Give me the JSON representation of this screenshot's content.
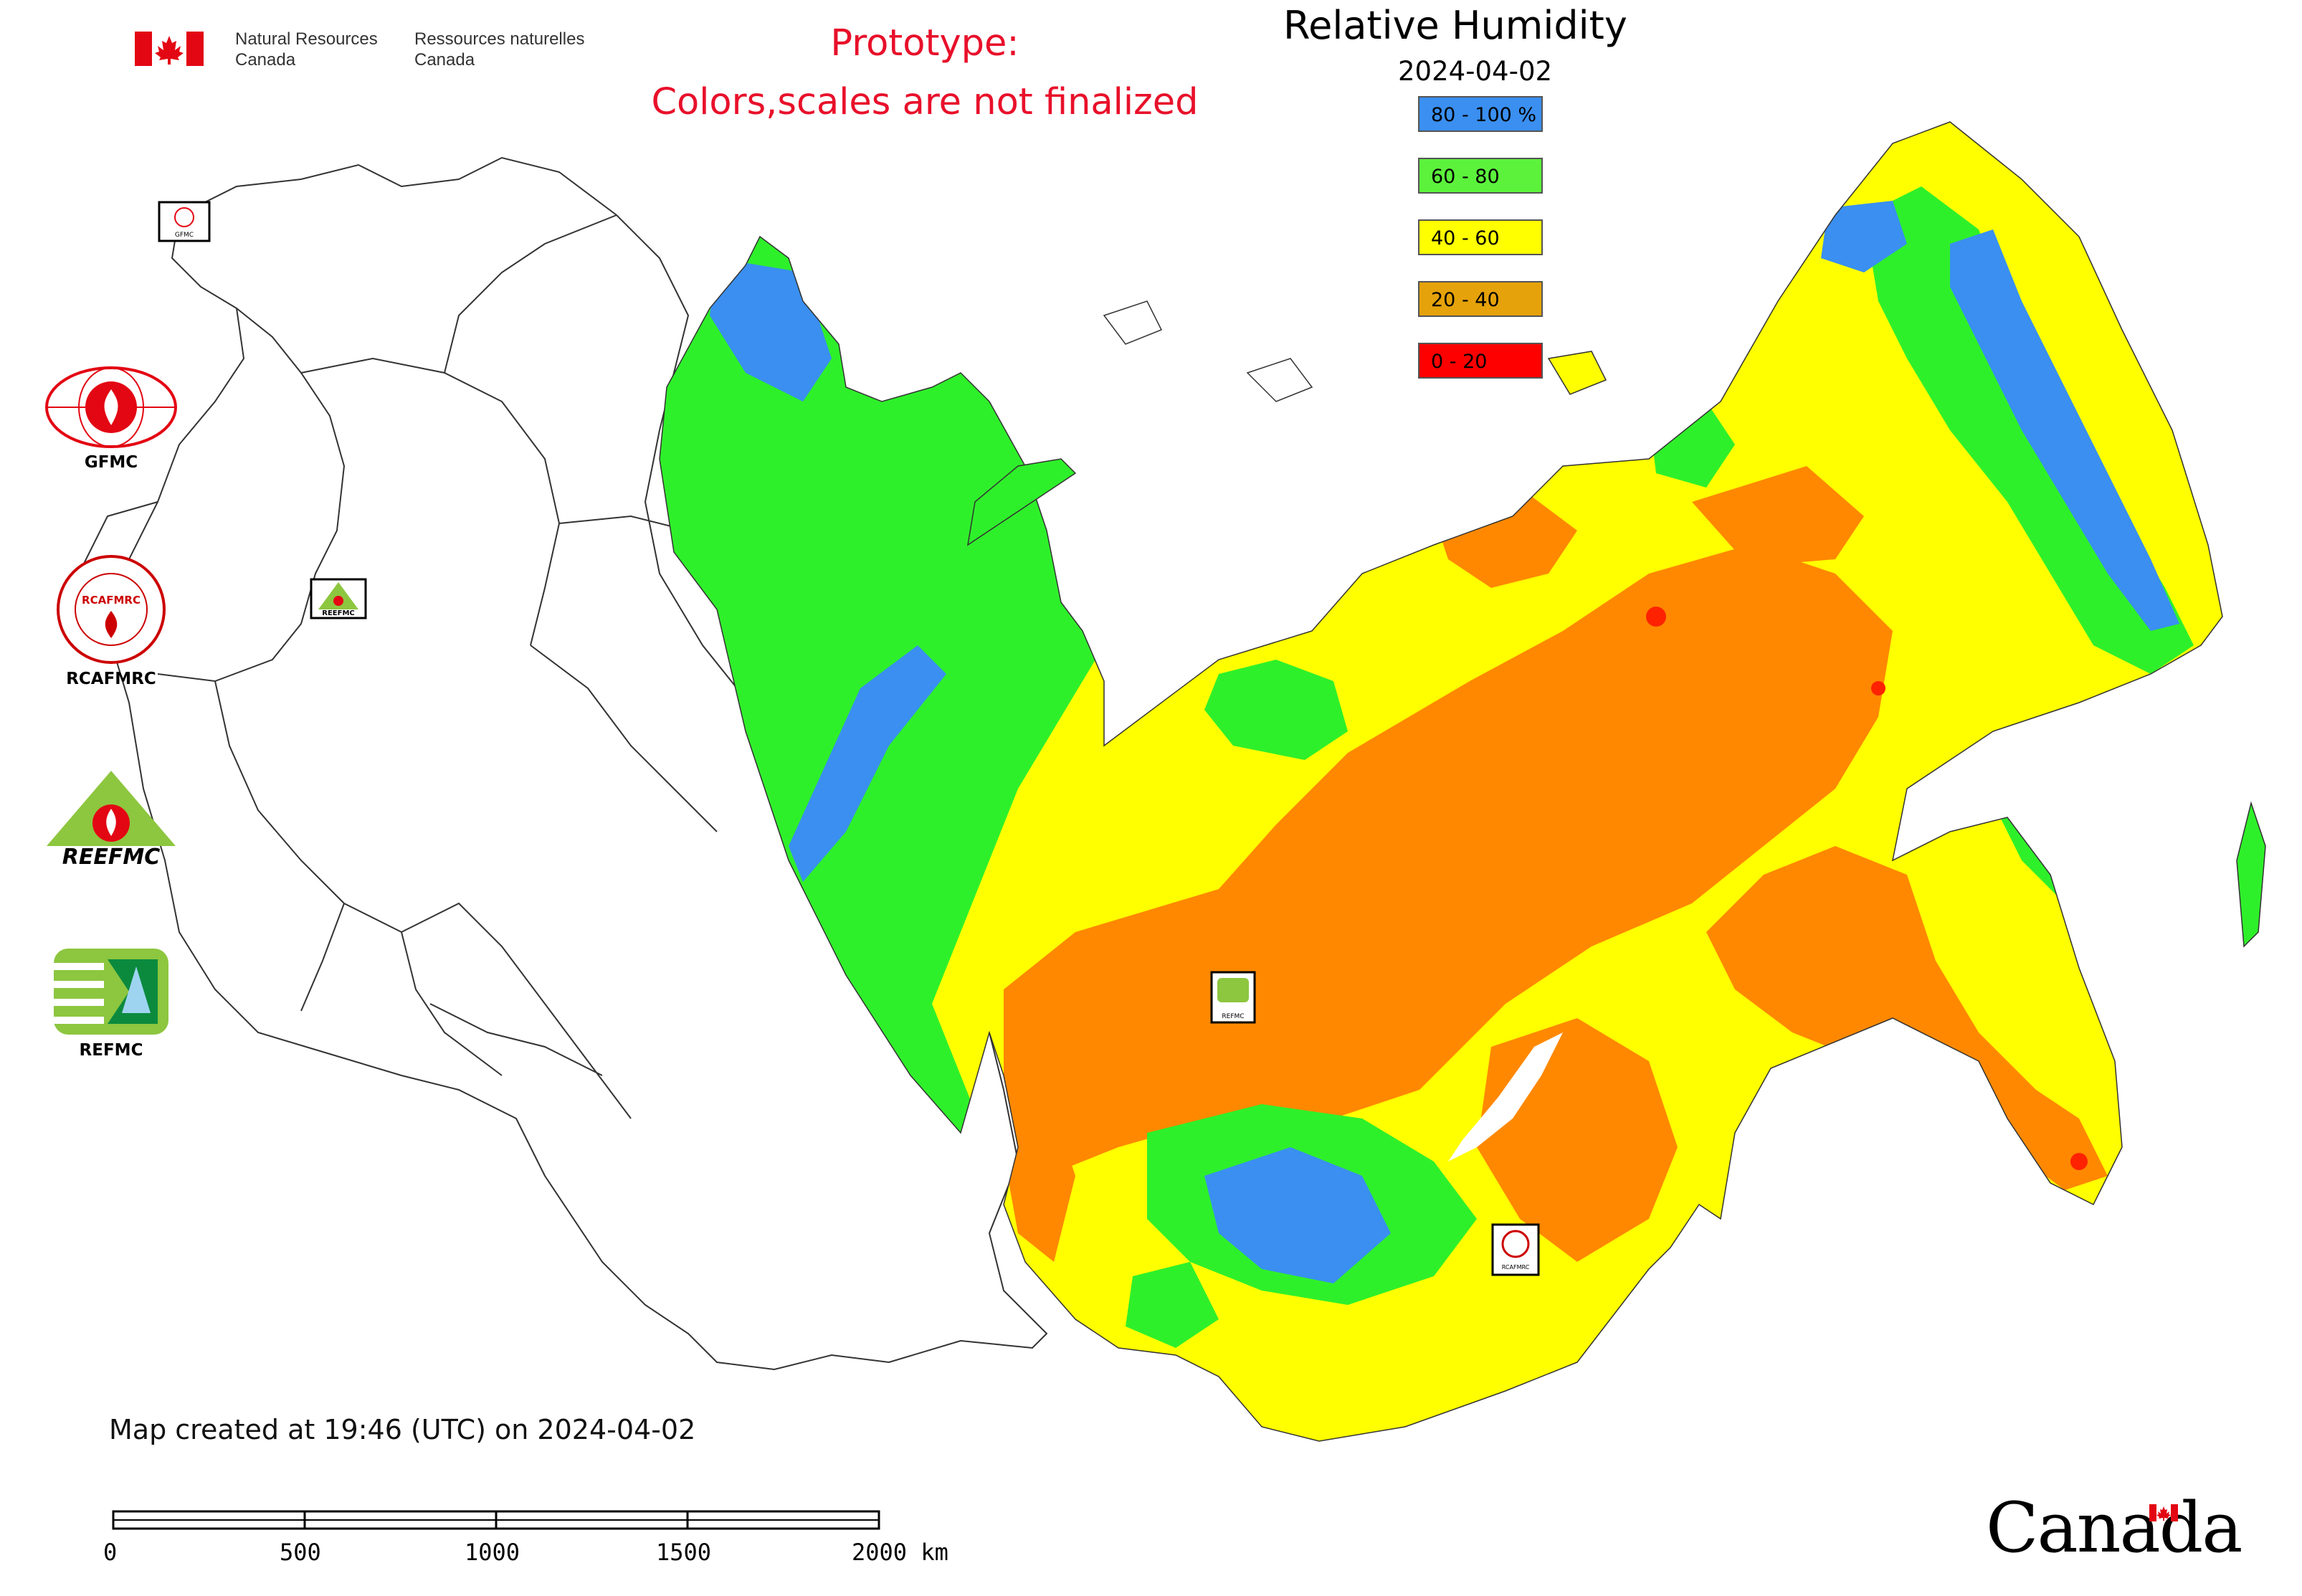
{
  "header": {
    "org_en_line1": "Natural Resources",
    "org_en_line2": "Canada",
    "org_fr_line1": "Ressources naturelles",
    "org_fr_line2": "Canada",
    "notice_line1": "Prototype:",
    "notice_line2": "Colors,scales are not finalized"
  },
  "legend": {
    "title": "Relative Humidity",
    "date": "2024-04-02",
    "items": [
      {
        "label": "80 - 100 %",
        "color": "#3a8ff0"
      },
      {
        "label": "60 - 80",
        "color": "#5cf23c"
      },
      {
        "label": "40 - 60",
        "color": "#ffff00"
      },
      {
        "label": "20 - 40",
        "color": "#e5a20a"
      },
      {
        "label": "0 - 20",
        "color": "#ff0000"
      }
    ]
  },
  "colors": {
    "blue": "#3a8ff0",
    "green": "#2ef02a",
    "yellow": "#ffff00",
    "orange": "#ff8800",
    "red": "#ff2200",
    "border": "#333333"
  },
  "logos": [
    {
      "label": "GFMC",
      "icon": "gfmc-logo-icon"
    },
    {
      "label": "RCAFMRC",
      "icon": "rcafmrc-logo-icon",
      "text": "RCAFMRC"
    },
    {
      "label": "",
      "icon": "reefmc-logo-icon",
      "text": "REEFMC"
    },
    {
      "label": "REFMC",
      "icon": "refmc-logo-icon"
    }
  ],
  "map_markers": [
    {
      "label": "GFMC",
      "icon": "gfmc-marker-icon"
    },
    {
      "label": "REEFMC",
      "icon": "reefmc-marker-icon"
    },
    {
      "label": "REFMC",
      "icon": "refmc-marker-icon"
    },
    {
      "label": "RCAFMRC",
      "icon": "rcafmrc-marker-icon"
    }
  ],
  "footer": {
    "created": "Map created at 19:46 (UTC) on 2024-04-02",
    "scale_ticks": [
      "0",
      "500",
      "1000",
      "1500",
      "2000 km"
    ],
    "wordmark": "Canada"
  }
}
